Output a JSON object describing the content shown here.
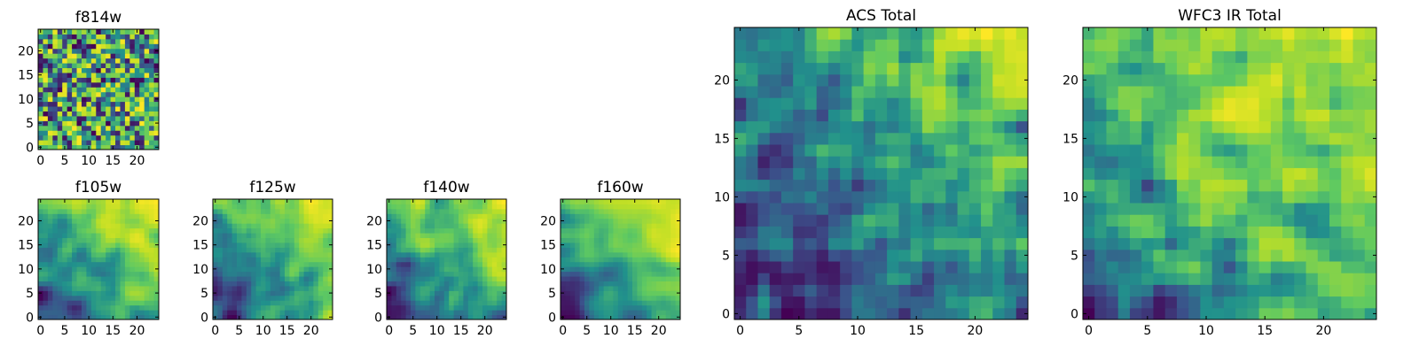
{
  "chart_data": [
    {
      "type": "heatmap",
      "title": "f814w",
      "shape": [
        25,
        25
      ],
      "seed": 11,
      "smooth": 0,
      "xticks": [
        0,
        5,
        10,
        15,
        20
      ],
      "yticks": [
        0,
        5,
        10,
        15,
        20
      ],
      "xtick_labels": [
        "0",
        "5",
        "10",
        "15",
        "20"
      ],
      "ytick_labels": [
        "0",
        "5",
        "10",
        "15",
        "20"
      ],
      "colormap": "viridis",
      "origin": "lower",
      "grid": false
    },
    {
      "type": "heatmap",
      "title": "f105w",
      "shape": [
        25,
        25
      ],
      "seed": 21,
      "smooth": 2,
      "xticks": [
        0,
        5,
        10,
        15,
        20
      ],
      "yticks": [
        0,
        5,
        10,
        15,
        20
      ],
      "xtick_labels": [
        "0",
        "5",
        "10",
        "15",
        "20"
      ],
      "ytick_labels": [
        "0",
        "5",
        "10",
        "15",
        "20"
      ],
      "colormap": "viridis",
      "origin": "lower",
      "grid": false
    },
    {
      "type": "heatmap",
      "title": "f125w",
      "shape": [
        25,
        25
      ],
      "seed": 31,
      "smooth": 2,
      "xticks": [
        0,
        5,
        10,
        15,
        20
      ],
      "yticks": [
        0,
        5,
        10,
        15,
        20
      ],
      "xtick_labels": [
        "0",
        "5",
        "10",
        "15",
        "20"
      ],
      "ytick_labels": [
        "0",
        "5",
        "10",
        "15",
        "20"
      ],
      "colormap": "viridis",
      "origin": "lower",
      "grid": false
    },
    {
      "type": "heatmap",
      "title": "f140w",
      "shape": [
        25,
        25
      ],
      "seed": 41,
      "smooth": 2,
      "xticks": [
        0,
        5,
        10,
        15,
        20
      ],
      "yticks": [
        0,
        5,
        10,
        15,
        20
      ],
      "xtick_labels": [
        "0",
        "5",
        "10",
        "15",
        "20"
      ],
      "ytick_labels": [
        "0",
        "5",
        "10",
        "15",
        "20"
      ],
      "colormap": "viridis",
      "origin": "lower",
      "grid": false
    },
    {
      "type": "heatmap",
      "title": "f160w",
      "shape": [
        25,
        25
      ],
      "seed": 51,
      "smooth": 3,
      "xticks": [
        0,
        5,
        10,
        15,
        20
      ],
      "yticks": [
        0,
        5,
        10,
        15,
        20
      ],
      "xtick_labels": [
        "0",
        "5",
        "10",
        "15",
        "20"
      ],
      "ytick_labels": [
        "0",
        "5",
        "10",
        "15",
        "20"
      ],
      "colormap": "viridis",
      "origin": "lower",
      "grid": false
    },
    {
      "type": "heatmap",
      "title": "ACS Total",
      "shape": [
        25,
        25
      ],
      "seed": 61,
      "smooth": 1,
      "xticks": [
        0,
        5,
        10,
        15,
        20
      ],
      "yticks": [
        0,
        5,
        10,
        15,
        20
      ],
      "xtick_labels": [
        "0",
        "5",
        "10",
        "15",
        "20"
      ],
      "ytick_labels": [
        "0",
        "5",
        "10",
        "15",
        "20"
      ],
      "colormap": "viridis",
      "origin": "lower",
      "grid": false
    },
    {
      "type": "heatmap",
      "title": "WFC3 IR Total",
      "shape": [
        25,
        25
      ],
      "seed": 71,
      "smooth": 1,
      "xticks": [
        0,
        5,
        10,
        15,
        20
      ],
      "yticks": [
        0,
        5,
        10,
        15,
        20
      ],
      "xtick_labels": [
        "0",
        "5",
        "10",
        "15",
        "20"
      ],
      "ytick_labels": [
        "0",
        "5",
        "10",
        "15",
        "20"
      ],
      "colormap": "viridis",
      "origin": "lower",
      "grid": false
    }
  ],
  "colors": {
    "viridis_stops": [
      "#440154",
      "#3b528b",
      "#21918c",
      "#5ec962",
      "#bddf26",
      "#fde725"
    ],
    "axis": "#000000",
    "background": "#ffffff"
  }
}
